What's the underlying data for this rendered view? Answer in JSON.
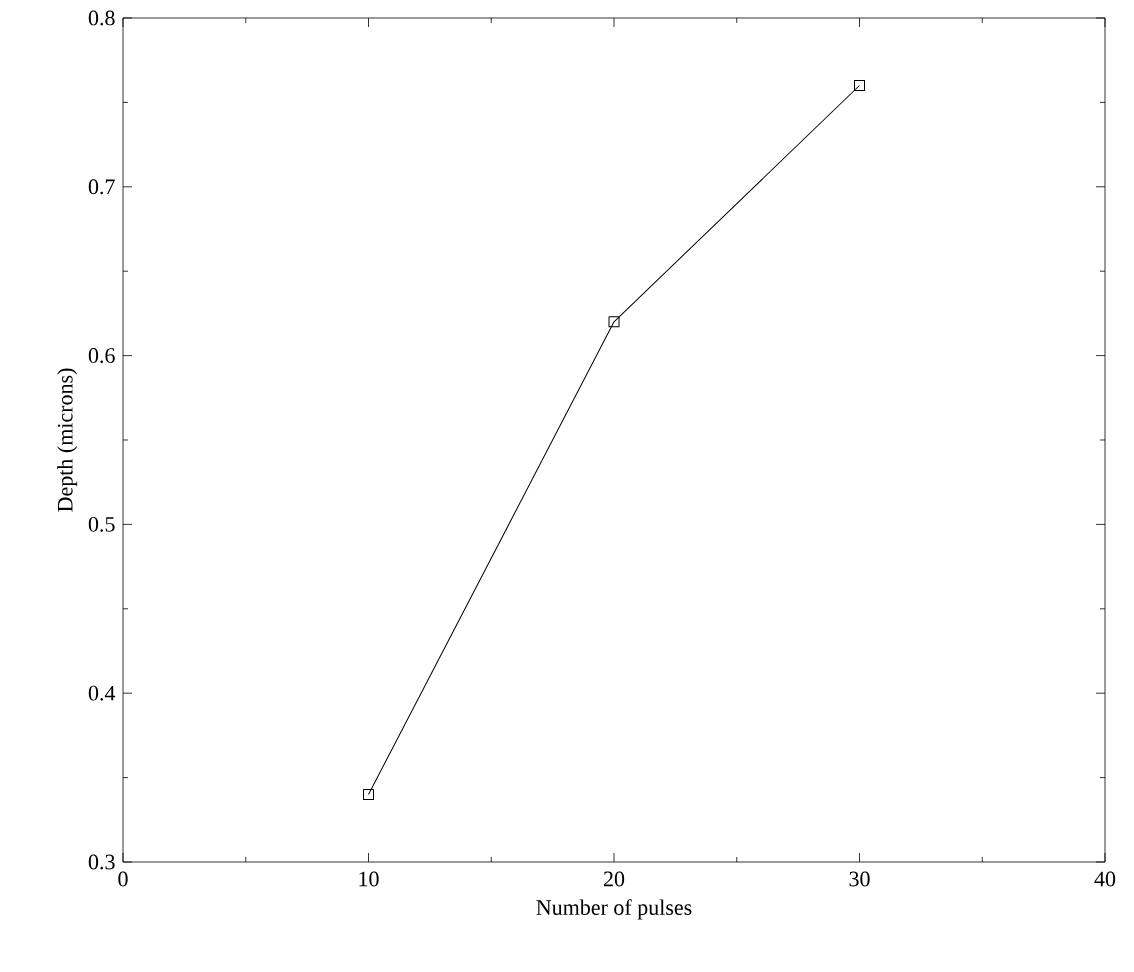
{
  "chart_data": {
    "type": "line",
    "xlabel": "Number of pulses",
    "ylabel": "Depth (microns)",
    "x": [
      10,
      20,
      30
    ],
    "series": [
      {
        "color": "#000000",
        "values": [
          0.34,
          0.62,
          0.76
        ]
      }
    ],
    "xlim": [
      0,
      40
    ],
    "xticks": [
      0,
      10,
      20,
      30,
      40
    ],
    "ylim": [
      0.3,
      0.8
    ],
    "yticks": [
      0.3,
      0.4,
      0.5,
      0.6,
      0.7,
      0.8
    ],
    "marker": "square",
    "line_style": "solid"
  }
}
